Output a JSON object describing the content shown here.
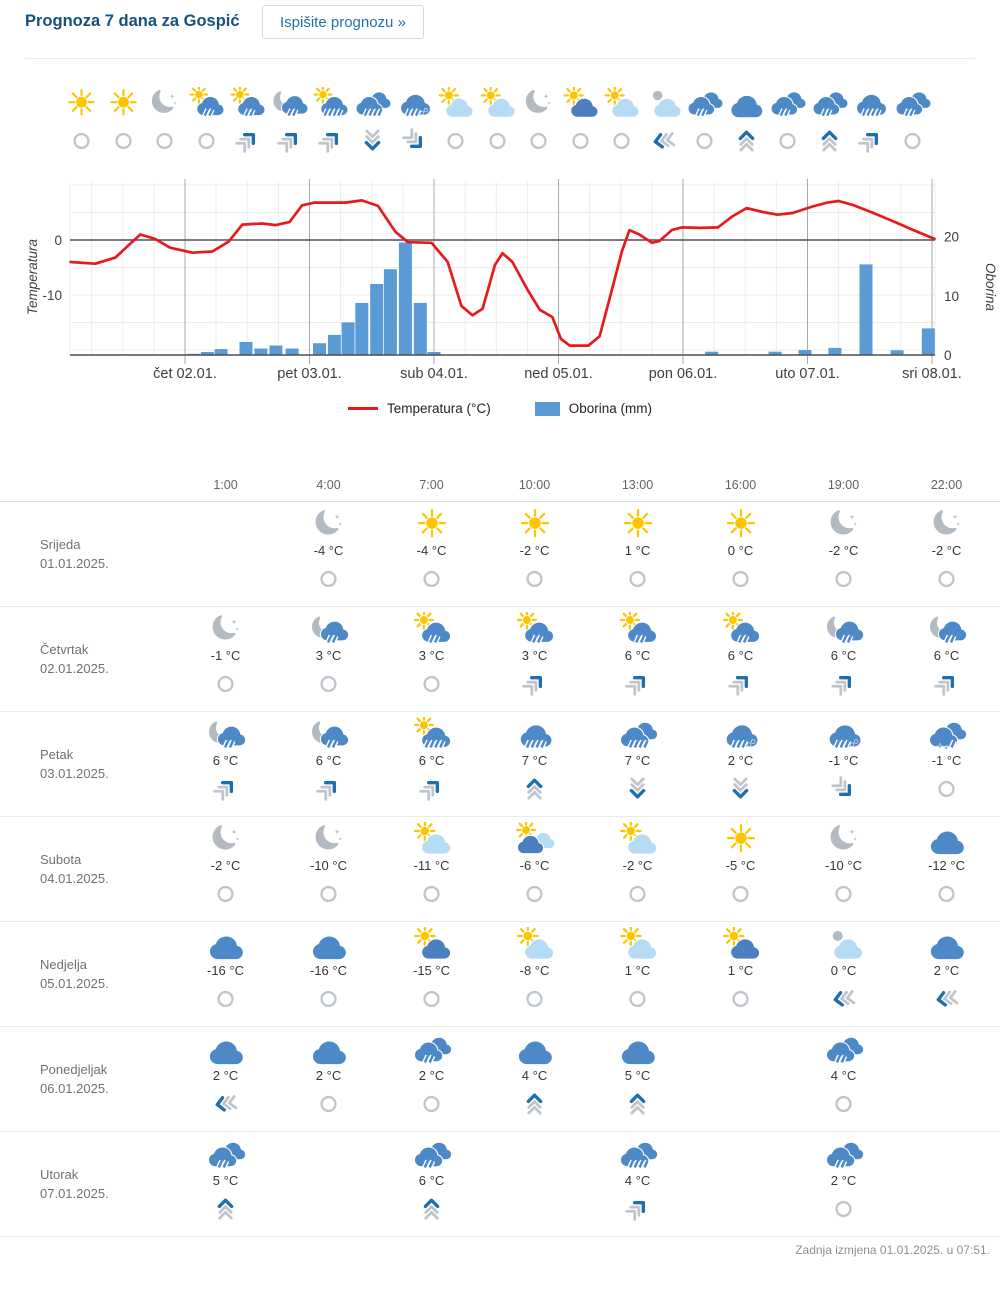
{
  "colors": {
    "title_blue": "#14527d",
    "link_blue": "#2073ad",
    "sun_yellow": "#fdc500",
    "cloud_blue": "#4d88c7",
    "cloud_dark_blue": "#4b7fbe",
    "cloud_light_blue": "#b5dcf4",
    "cloud_gray": "#b3bac2",
    "wind_gray": "#bfc5cb",
    "wind_blue": "#1e6fad",
    "temp_red": "#e8191c",
    "bar_blue": "#5b9bd5"
  },
  "header": {
    "title": "Prognoza 7 dana za Gospić",
    "print_button": "Ispišite prognozu »"
  },
  "strip": {
    "icons": [
      {
        "sky": "sun",
        "wind": "calm"
      },
      {
        "sky": "sun",
        "wind": "calm"
      },
      {
        "sky": "moon",
        "wind": "calm"
      },
      {
        "sky": "sun-cloud-rain",
        "wind": "calm"
      },
      {
        "sky": "sun-cloud-rain",
        "wind": "ne"
      },
      {
        "sky": "moon-cloud-rain",
        "wind": "ne"
      },
      {
        "sky": "sun-cloud-rain-heavy",
        "wind": "ne"
      },
      {
        "sky": "clouds-rain-heavy",
        "wind": "s"
      },
      {
        "sky": "rain-sleet",
        "wind": "se"
      },
      {
        "sky": "sun-cloud-light",
        "wind": "calm"
      },
      {
        "sky": "sun-cloud-light",
        "wind": "calm"
      },
      {
        "sky": "moon",
        "wind": "calm"
      },
      {
        "sky": "sun-cloud-dark",
        "wind": "calm"
      },
      {
        "sky": "sun-cloud-light",
        "wind": "calm"
      },
      {
        "sky": "gray-sun-cloud-light",
        "wind": "sw"
      },
      {
        "sky": "clouds-rain",
        "wind": "calm"
      },
      {
        "sky": "cloud",
        "wind": "n"
      },
      {
        "sky": "clouds-rain",
        "wind": "calm"
      },
      {
        "sky": "clouds-rain",
        "wind": "n"
      },
      {
        "sky": "cloud-rain-heavy",
        "wind": "ne"
      },
      {
        "sky": "clouds-rain",
        "wind": "calm"
      }
    ]
  },
  "chart": {
    "y_left_label": "Temperatura",
    "y_right_label": "Oborina",
    "left_ticks": [
      {
        "value": 0,
        "label": "0"
      },
      {
        "value": -10,
        "label": "-10"
      }
    ],
    "right_ticks": [
      {
        "value": 20,
        "label": "20"
      },
      {
        "value": 10,
        "label": "10"
      },
      {
        "value": 0,
        "label": "0"
      }
    ],
    "x_labels": [
      "čet 02.01.",
      "pet 03.01.",
      "sub 04.01.",
      "ned 05.01.",
      "pon 06.01.",
      "uto 07.01.",
      "sri 08.01."
    ],
    "legend": [
      {
        "label": "Temperatura (°C)",
        "swatch": "line",
        "color": "#e8191c"
      },
      {
        "label": "Oborina (mm)",
        "swatch": "box",
        "color": "#5b9bd5"
      }
    ]
  },
  "chart_data": {
    "type": "line+bar",
    "x_unit": "day of January 2025 (fraction = time of day)",
    "x_range": [
      1.08,
      8.02
    ],
    "x_tick_days": [
      2,
      3,
      4,
      5,
      6,
      7,
      8
    ],
    "x_tick_labels": [
      "čet 02.01.",
      "pet 03.01.",
      "sub 04.01.",
      "ned 05.01.",
      "pon 06.01.",
      "uto 07.01.",
      "sri 08.01."
    ],
    "y_left": {
      "label": "Temperatura",
      "units": "°C",
      "ticks": [
        0,
        -10
      ],
      "range": [
        -21,
        10.5
      ]
    },
    "y_right": {
      "label": "Oborina",
      "units": "mm",
      "ticks": [
        20,
        10,
        0
      ],
      "range": [
        0,
        32.6
      ]
    },
    "grid": true,
    "legend_position": "bottom",
    "series": [
      {
        "name": "Temperatura (°C)",
        "type": "line",
        "color": "#e8191c",
        "points": [
          [
            1.08,
            -4
          ],
          [
            1.28,
            -4.3
          ],
          [
            1.44,
            -3.2
          ],
          [
            1.64,
            1
          ],
          [
            1.76,
            0.2
          ],
          [
            1.88,
            -1.4
          ],
          [
            2.06,
            -2.3
          ],
          [
            2.22,
            -2.1
          ],
          [
            2.35,
            -0.3
          ],
          [
            2.46,
            2.8
          ],
          [
            2.62,
            3
          ],
          [
            2.73,
            2.7
          ],
          [
            2.84,
            3.3
          ],
          [
            2.94,
            6.3
          ],
          [
            3.04,
            6.8
          ],
          [
            3.29,
            6.8
          ],
          [
            3.42,
            7.2
          ],
          [
            3.55,
            6.2
          ],
          [
            3.69,
            1.5
          ],
          [
            3.79,
            -0.4
          ],
          [
            3.98,
            -0.5
          ],
          [
            4.11,
            -4
          ],
          [
            4.22,
            -12
          ],
          [
            4.31,
            -13.7
          ],
          [
            4.39,
            -12.5
          ],
          [
            4.49,
            -4.5
          ],
          [
            4.55,
            -2.4
          ],
          [
            4.63,
            -4
          ],
          [
            4.75,
            -9
          ],
          [
            4.85,
            -12.7
          ],
          [
            4.95,
            -14
          ],
          [
            5.02,
            -18
          ],
          [
            5.09,
            -19.2
          ],
          [
            5.24,
            -19.2
          ],
          [
            5.33,
            -17.5
          ],
          [
            5.43,
            -9
          ],
          [
            5.51,
            -2
          ],
          [
            5.57,
            1.8
          ],
          [
            5.65,
            1
          ],
          [
            5.75,
            -0.5
          ],
          [
            5.81,
            -0.2
          ],
          [
            5.91,
            1.8
          ],
          [
            5.99,
            2.3
          ],
          [
            6.14,
            2.2
          ],
          [
            6.28,
            2.3
          ],
          [
            6.39,
            4.2
          ],
          [
            6.51,
            5.8
          ],
          [
            6.64,
            5.1
          ],
          [
            6.76,
            4.6
          ],
          [
            6.88,
            4.9
          ],
          [
            7.04,
            6.1
          ],
          [
            7.16,
            6.8
          ],
          [
            7.25,
            7.1
          ],
          [
            7.36,
            6.4
          ],
          [
            7.52,
            5
          ],
          [
            7.7,
            3.3
          ],
          [
            7.86,
            1.7
          ],
          [
            8.02,
            0.2
          ]
        ]
      },
      {
        "name": "Oborina (mm)",
        "type": "bar",
        "color": "#5b9bd5",
        "bar_width_days": 0.104,
        "points": [
          [
            2.07,
            0.2
          ],
          [
            2.18,
            0.5
          ],
          [
            2.29,
            1.0
          ],
          [
            2.49,
            2.2
          ],
          [
            2.61,
            1.1
          ],
          [
            2.73,
            1.6
          ],
          [
            2.86,
            1.1
          ],
          [
            3.08,
            2.0
          ],
          [
            3.2,
            3.4
          ],
          [
            3.31,
            5.5
          ],
          [
            3.42,
            8.8
          ],
          [
            3.54,
            12
          ],
          [
            3.65,
            14.5
          ],
          [
            3.77,
            19
          ],
          [
            3.89,
            8.8
          ],
          [
            4.0,
            0.5
          ],
          [
            6.23,
            0.55
          ],
          [
            6.74,
            0.55
          ],
          [
            6.98,
            0.85
          ],
          [
            7.22,
            1.2
          ],
          [
            7.47,
            15.3
          ],
          [
            7.72,
            0.8
          ],
          [
            7.97,
            4.5
          ]
        ]
      }
    ]
  },
  "table": {
    "times": [
      "1:00",
      "4:00",
      "7:00",
      "10:00",
      "13:00",
      "16:00",
      "19:00",
      "22:00"
    ],
    "days": [
      {
        "name": "Srijeda",
        "date": "01.01.2025.",
        "cells": [
          null,
          {
            "sky": "moon",
            "temp": "-4 °C",
            "wind": "calm"
          },
          {
            "sky": "sun",
            "temp": "-4 °C",
            "wind": "calm"
          },
          {
            "sky": "sun",
            "temp": "-2 °C",
            "wind": "calm"
          },
          {
            "sky": "sun",
            "temp": "1 °C",
            "wind": "calm"
          },
          {
            "sky": "sun",
            "temp": "0 °C",
            "wind": "calm"
          },
          {
            "sky": "moon",
            "temp": "-2 °C",
            "wind": "calm"
          },
          {
            "sky": "moon",
            "temp": "-2 °C",
            "wind": "calm"
          }
        ]
      },
      {
        "name": "Četvrtak",
        "date": "02.01.2025.",
        "cells": [
          {
            "sky": "moon",
            "temp": "-1 °C",
            "wind": "calm"
          },
          {
            "sky": "moon-cloud-rain",
            "temp": "3 °C",
            "wind": "calm"
          },
          {
            "sky": "sun-cloud-rain",
            "temp": "3 °C",
            "wind": "calm"
          },
          {
            "sky": "sun-cloud-rain",
            "temp": "3 °C",
            "wind": "ne"
          },
          {
            "sky": "sun-cloud-rain",
            "temp": "6 °C",
            "wind": "ne"
          },
          {
            "sky": "sun-cloud-rain",
            "temp": "6 °C",
            "wind": "ne"
          },
          {
            "sky": "moon-cloud-rain",
            "temp": "6 °C",
            "wind": "ne"
          },
          {
            "sky": "moon-cloud-rain",
            "temp": "6 °C",
            "wind": "ne"
          }
        ]
      },
      {
        "name": "Petak",
        "date": "03.01.2025.",
        "cells": [
          {
            "sky": "moon-cloud-rain",
            "temp": "6 °C",
            "wind": "ne"
          },
          {
            "sky": "moon-cloud-rain",
            "temp": "6 °C",
            "wind": "ne"
          },
          {
            "sky": "sun-cloud-rain-heavy",
            "temp": "6 °C",
            "wind": "ne"
          },
          {
            "sky": "cloud-rain-heavy",
            "temp": "7 °C",
            "wind": "n"
          },
          {
            "sky": "clouds-rain-heavy",
            "temp": "7 °C",
            "wind": "s"
          },
          {
            "sky": "rain-sleet",
            "temp": "2 °C",
            "wind": "s"
          },
          {
            "sky": "rain-sleet",
            "temp": "-1 °C",
            "wind": "se"
          },
          {
            "sky": "clouds-snow",
            "temp": "-1 °C",
            "wind": "calm"
          }
        ]
      },
      {
        "name": "Subota",
        "date": "04.01.2025.",
        "cells": [
          {
            "sky": "moon",
            "temp": "-2 °C",
            "wind": "calm"
          },
          {
            "sky": "moon",
            "temp": "-10 °C",
            "wind": "calm"
          },
          {
            "sky": "sun-cloud-light",
            "temp": "-11 °C",
            "wind": "calm"
          },
          {
            "sky": "sun-cloud-dark-light",
            "temp": "-6 °C",
            "wind": "calm"
          },
          {
            "sky": "sun-cloud-light",
            "temp": "-2 °C",
            "wind": "calm"
          },
          {
            "sky": "sun",
            "temp": "-5 °C",
            "wind": "calm"
          },
          {
            "sky": "moon",
            "temp": "-10 °C",
            "wind": "calm"
          },
          {
            "sky": "cloud",
            "temp": "-12 °C",
            "wind": "calm"
          }
        ]
      },
      {
        "name": "Nedjelja",
        "date": "05.01.2025.",
        "cells": [
          {
            "sky": "cloud",
            "temp": "-16 °C",
            "wind": "calm"
          },
          {
            "sky": "cloud",
            "temp": "-16 °C",
            "wind": "calm"
          },
          {
            "sky": "sun-cloud-dark",
            "temp": "-15 °C",
            "wind": "calm"
          },
          {
            "sky": "sun-cloud-light",
            "temp": "-8 °C",
            "wind": "calm"
          },
          {
            "sky": "sun-cloud-light",
            "temp": "1 °C",
            "wind": "calm"
          },
          {
            "sky": "sun-cloud-dark",
            "temp": "1 °C",
            "wind": "calm"
          },
          {
            "sky": "gray-sun-cloud-light",
            "temp": "0 °C",
            "wind": "sw"
          },
          {
            "sky": "cloud",
            "temp": "2 °C",
            "wind": "sw"
          }
        ]
      },
      {
        "name": "Ponedjeljak",
        "date": "06.01.2025.",
        "cells": [
          {
            "sky": "cloud",
            "temp": "2 °C",
            "wind": "sw"
          },
          {
            "sky": "cloud",
            "temp": "2 °C",
            "wind": "calm"
          },
          {
            "sky": "clouds-rain",
            "temp": "2 °C",
            "wind": "calm"
          },
          {
            "sky": "cloud",
            "temp": "4 °C",
            "wind": "n"
          },
          {
            "sky": "cloud",
            "temp": "5 °C",
            "wind": "n"
          },
          null,
          {
            "sky": "clouds-rain",
            "temp": "4 °C",
            "wind": "calm"
          },
          null
        ]
      },
      {
        "name": "Utorak",
        "date": "07.01.2025.",
        "cells": [
          {
            "sky": "clouds-rain",
            "temp": "5 °C",
            "wind": "n"
          },
          null,
          {
            "sky": "clouds-rain",
            "temp": "6 °C",
            "wind": "n"
          },
          null,
          {
            "sky": "clouds-rain-heavy",
            "temp": "4 °C",
            "wind": "ne"
          },
          null,
          {
            "sky": "clouds-rain",
            "temp": "2 °C",
            "wind": "calm"
          },
          null
        ]
      }
    ]
  },
  "footer": {
    "last_update": "Zadnja izmjena 01.01.2025. u 07:51."
  }
}
